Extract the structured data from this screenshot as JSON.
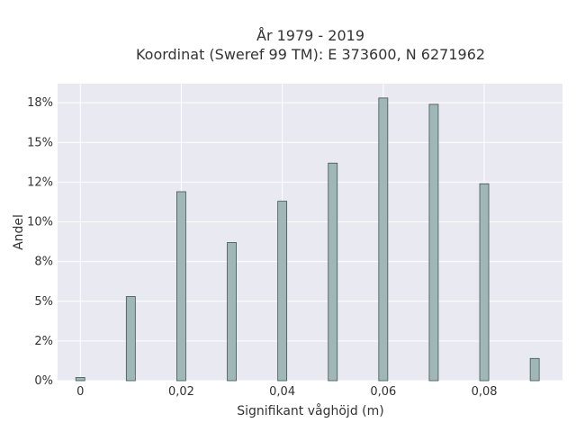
{
  "chart_data": {
    "type": "bar",
    "title_lines": [
      "År 1979 - 2019",
      "Koordinat (Sweref 99 TM): E 373600, N 6271962"
    ],
    "xlabel": "Signifikant våghöjd (m)",
    "ylabel": "Andel",
    "x": [
      0,
      0.01,
      0.02,
      0.03,
      0.04,
      0.05,
      0.06,
      0.07,
      0.08,
      0.09
    ],
    "values": [
      0.2,
      5.3,
      11.9,
      8.7,
      11.3,
      13.7,
      17.8,
      17.4,
      12.4,
      1.4
    ],
    "xlim": [
      -0.0045,
      0.0955
    ],
    "ylim": [
      0,
      18.7
    ],
    "xticks": [
      0,
      0.02,
      0.04,
      0.06,
      0.08
    ],
    "xtick_labels": [
      "0",
      "0,02",
      "0,04",
      "0,06",
      "0,08"
    ],
    "yticks": [
      0,
      2.5,
      5,
      7.5,
      10,
      12.5,
      15,
      17.5
    ],
    "ytick_labels": [
      "0%",
      "2%",
      "5%",
      "8%",
      "10%",
      "12%",
      "15%",
      "18%"
    ],
    "grid": true,
    "colors": {
      "bar_fill": "#9fb7b7",
      "bar_stroke": "#3f5454",
      "plot_bg": "#e9e9f1",
      "grid": "#ffffff"
    }
  }
}
